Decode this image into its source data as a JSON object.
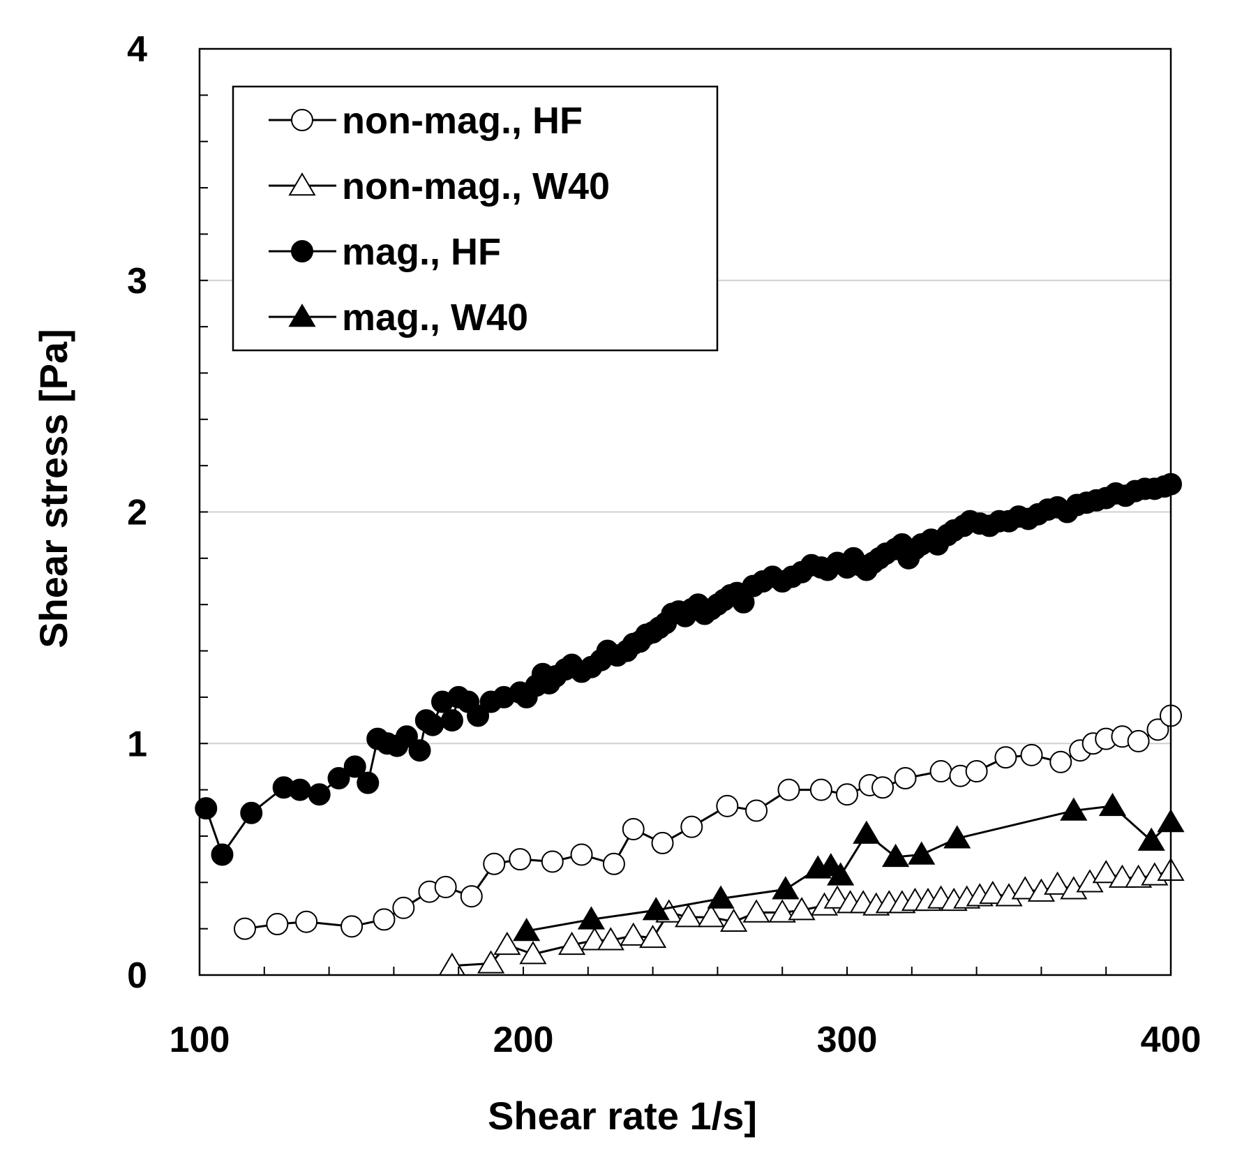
{
  "chart_data": {
    "type": "scatter",
    "title": "",
    "xlabel": "Shear rate   1/s]",
    "ylabel": "Shear stress   [Pa]",
    "xlim": [
      100,
      400
    ],
    "ylim": [
      0,
      4
    ],
    "x_ticks": [
      100,
      200,
      300,
      400
    ],
    "y_ticks": [
      0,
      1,
      2,
      3,
      4
    ],
    "x_tick_labels": [
      "100",
      "200",
      "300",
      "400"
    ],
    "y_tick_labels": [
      "0",
      "1",
      "2",
      "3",
      "4"
    ],
    "grid": "horizontal",
    "legend_position": "top-left",
    "series": [
      {
        "name": "non-mag., HF",
        "marker": "circle",
        "fill": "open",
        "color": "#000000",
        "x": [
          114,
          124,
          133,
          147,
          157,
          163,
          171,
          176,
          184,
          191,
          199,
          209,
          218,
          228,
          234,
          243,
          252,
          263,
          272,
          282,
          292,
          300,
          307,
          311,
          318,
          329,
          335,
          340,
          349,
          357,
          366,
          372,
          376,
          380,
          385,
          390,
          396,
          400
        ],
        "y": [
          0.2,
          0.22,
          0.23,
          0.21,
          0.24,
          0.29,
          0.36,
          0.38,
          0.34,
          0.48,
          0.5,
          0.49,
          0.52,
          0.48,
          0.63,
          0.57,
          0.64,
          0.73,
          0.71,
          0.8,
          0.8,
          0.78,
          0.82,
          0.81,
          0.85,
          0.88,
          0.86,
          0.88,
          0.94,
          0.95,
          0.92,
          0.97,
          1.0,
          1.02,
          1.03,
          1.01,
          1.06,
          1.12
        ]
      },
      {
        "name": "non-mag., W40",
        "marker": "triangle",
        "fill": "open",
        "color": "#000000",
        "x": [
          178,
          190,
          195,
          203,
          215,
          222,
          227,
          234,
          240,
          245,
          251,
          258,
          265,
          272,
          280,
          286,
          293,
          297,
          301,
          305,
          309,
          313,
          317,
          321,
          325,
          329,
          333,
          337,
          341,
          345,
          350,
          355,
          360,
          365,
          370,
          375,
          380,
          385,
          390,
          395,
          400
        ],
        "y": [
          0.04,
          0.05,
          0.13,
          0.09,
          0.13,
          0.15,
          0.15,
          0.17,
          0.16,
          0.27,
          0.25,
          0.25,
          0.23,
          0.27,
          0.27,
          0.28,
          0.3,
          0.33,
          0.31,
          0.31,
          0.3,
          0.31,
          0.31,
          0.32,
          0.32,
          0.33,
          0.32,
          0.33,
          0.34,
          0.35,
          0.34,
          0.37,
          0.36,
          0.39,
          0.37,
          0.4,
          0.44,
          0.42,
          0.42,
          0.43,
          0.45
        ]
      },
      {
        "name": "mag., HF",
        "marker": "circle",
        "fill": "filled",
        "color": "#000000",
        "x": [
          102,
          107,
          116,
          126,
          131,
          137,
          143,
          148,
          152,
          155,
          158,
          161,
          164,
          168,
          170,
          172,
          175,
          178,
          180,
          183,
          186,
          190,
          194,
          199,
          201,
          204,
          206,
          208,
          210,
          213,
          215,
          218,
          221,
          224,
          226,
          229,
          232,
          234,
          236,
          238,
          240,
          242,
          244,
          246,
          248,
          250,
          252,
          254,
          256,
          258,
          260,
          262,
          264,
          266,
          268,
          271,
          274,
          277,
          280,
          283,
          286,
          289,
          292,
          294,
          297,
          300,
          302,
          304,
          306,
          308,
          310,
          312,
          315,
          317,
          319,
          321,
          323,
          326,
          328,
          331,
          333,
          336,
          338,
          341,
          344,
          347,
          350,
          353,
          356,
          359,
          362,
          365,
          368,
          371,
          374,
          377,
          380,
          383,
          386,
          389,
          392,
          395,
          398,
          400
        ],
        "y": [
          0.72,
          0.52,
          0.7,
          0.81,
          0.8,
          0.78,
          0.85,
          0.9,
          0.83,
          1.02,
          1.0,
          0.99,
          1.03,
          0.97,
          1.1,
          1.08,
          1.18,
          1.1,
          1.2,
          1.18,
          1.12,
          1.18,
          1.2,
          1.22,
          1.2,
          1.25,
          1.3,
          1.26,
          1.29,
          1.32,
          1.34,
          1.31,
          1.33,
          1.36,
          1.4,
          1.38,
          1.4,
          1.43,
          1.44,
          1.47,
          1.48,
          1.5,
          1.52,
          1.56,
          1.57,
          1.55,
          1.58,
          1.6,
          1.56,
          1.58,
          1.6,
          1.62,
          1.64,
          1.65,
          1.61,
          1.68,
          1.7,
          1.72,
          1.7,
          1.72,
          1.74,
          1.77,
          1.76,
          1.75,
          1.78,
          1.76,
          1.8,
          1.77,
          1.75,
          1.78,
          1.8,
          1.82,
          1.84,
          1.86,
          1.8,
          1.84,
          1.86,
          1.88,
          1.86,
          1.9,
          1.92,
          1.94,
          1.96,
          1.95,
          1.94,
          1.96,
          1.96,
          1.98,
          1.97,
          1.99,
          2.01,
          2.02,
          2.0,
          2.03,
          2.04,
          2.05,
          2.06,
          2.08,
          2.07,
          2.09,
          2.1,
          2.1,
          2.11,
          2.12
        ]
      },
      {
        "name": "mag., W40",
        "marker": "triangle",
        "fill": "filled",
        "color": "#000000",
        "x": [
          201,
          221,
          241,
          261,
          281,
          291,
          295,
          298,
          306,
          315,
          323,
          334,
          370,
          382,
          394,
          400
        ],
        "y": [
          0.19,
          0.24,
          0.28,
          0.33,
          0.37,
          0.46,
          0.47,
          0.43,
          0.61,
          0.51,
          0.52,
          0.59,
          0.71,
          0.73,
          0.58,
          0.66
        ]
      }
    ]
  }
}
